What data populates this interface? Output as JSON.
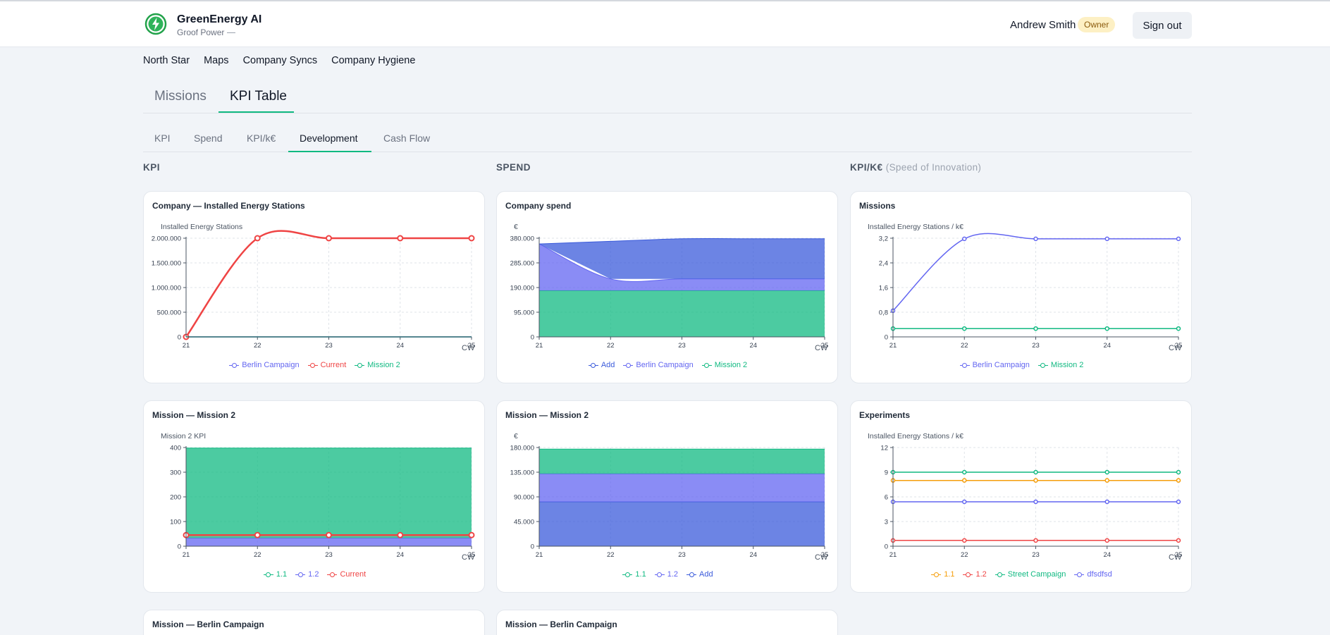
{
  "app": {
    "title": "GreenEnergy AI",
    "subtitle": "Groof Power",
    "user_name": "Andrew Smith",
    "role": "Owner",
    "signout_label": "Sign out"
  },
  "nav": [
    "North Star",
    "Maps",
    "Company Syncs",
    "Company Hygiene"
  ],
  "main_tabs": [
    {
      "label": "Missions",
      "active": false
    },
    {
      "label": "KPI Table",
      "active": true
    }
  ],
  "sub_tabs": [
    {
      "label": "KPI",
      "active": false
    },
    {
      "label": "Spend",
      "active": false
    },
    {
      "label": "KPI/k€",
      "active": false
    },
    {
      "label": "Development",
      "active": true
    },
    {
      "label": "Cash Flow",
      "active": false
    }
  ],
  "sections": {
    "kpi": "KPI",
    "spend": "SPEND",
    "kpik": "KPI/K€",
    "kpik_note": "(Speed of Innovation)"
  },
  "colors": {
    "berlin": "#6366f1",
    "current": "#ef4444",
    "mission2": "#10b981",
    "add": "#3b5bdb",
    "orange": "#f59e0b",
    "accent": "#10b981"
  },
  "chart_data": [
    {
      "id": "kpi_company",
      "title": "Company — Installed Energy Stations",
      "type": "line",
      "ylabel": "Installed Energy Stations",
      "xlabel": "CW",
      "x": [
        21,
        22,
        23,
        24,
        25
      ],
      "ylim": [
        0,
        2000000
      ],
      "yticks": [
        "0",
        "500.000",
        "1.000.000",
        "1.500.000",
        "2.000.000"
      ],
      "series": [
        {
          "name": "Berlin Campaign",
          "color": "#6366f1",
          "values": [
            0,
            0,
            0,
            0,
            0
          ],
          "markers": false
        },
        {
          "name": "Current",
          "color": "#ef4444",
          "values": [
            0,
            2000000,
            2000000,
            2000000,
            2000000
          ],
          "markers": true,
          "big": true
        },
        {
          "name": "Mission 2",
          "color": "#10b981",
          "values": [
            0,
            0,
            0,
            0,
            0
          ],
          "markers": false
        }
      ]
    },
    {
      "id": "spend_company",
      "title": "Company spend",
      "type": "area",
      "ylabel": "€",
      "xlabel": "CW",
      "x": [
        21,
        22,
        23,
        24,
        25
      ],
      "ylim": [
        0,
        380000
      ],
      "yticks": [
        "0",
        "95.000",
        "190.000",
        "285.000",
        "380.000"
      ],
      "series": [
        {
          "name": "Add",
          "color": "#3b5bdb",
          "values": [
            0,
            145000,
            155000,
            155000,
            155000
          ]
        },
        {
          "name": "Berlin Campaign",
          "color": "#6366f1",
          "values": [
            180000,
            45000,
            45000,
            45000,
            45000
          ]
        },
        {
          "name": "Mission 2",
          "color": "#10b981",
          "values": [
            178000,
            178000,
            178000,
            178000,
            178000
          ]
        }
      ]
    },
    {
      "id": "kpik_missions",
      "title": "Missions",
      "type": "line",
      "ylabel": "Installed Energy Stations / k€",
      "xlabel": "CW",
      "x": [
        21,
        22,
        23,
        24,
        25
      ],
      "ylim": [
        0,
        3.2
      ],
      "yticks": [
        "0",
        "0,8",
        "1,6",
        "2,4",
        "3,2"
      ],
      "series": [
        {
          "name": "Berlin Campaign",
          "color": "#6366f1",
          "values": [
            0.85,
            3.18,
            3.18,
            3.18,
            3.18
          ],
          "markers": true
        },
        {
          "name": "Mission 2",
          "color": "#10b981",
          "values": [
            0.27,
            0.27,
            0.27,
            0.27,
            0.27
          ],
          "markers": true
        }
      ]
    },
    {
      "id": "kpi_mission2",
      "title": "Mission — Mission 2",
      "type": "area",
      "ylabel": "Mission 2 KPI",
      "xlabel": "CW",
      "x": [
        21,
        22,
        23,
        24,
        25
      ],
      "ylim": [
        0,
        400
      ],
      "yticks": [
        "0",
        "100",
        "200",
        "300",
        "400"
      ],
      "series": [
        {
          "name": "1.1",
          "color": "#10b981",
          "values": [
            365,
            365,
            365,
            365,
            365
          ]
        },
        {
          "name": "1.2",
          "color": "#6366f1",
          "values": [
            33,
            33,
            33,
            33,
            33
          ]
        },
        {
          "name": "Current",
          "color": "#ef4444",
          "values": [
            45,
            45,
            45,
            45,
            45
          ],
          "line": true
        }
      ]
    },
    {
      "id": "spend_mission2",
      "title": "Mission — Mission 2",
      "type": "area",
      "ylabel": "€",
      "xlabel": "CW",
      "x": [
        21,
        22,
        23,
        24,
        25
      ],
      "ylim": [
        0,
        180000
      ],
      "yticks": [
        "0",
        "45.000",
        "90.000",
        "135.000",
        "180.000"
      ],
      "series": [
        {
          "name": "1.1",
          "color": "#10b981",
          "values": [
            45000,
            45000,
            45000,
            45000,
            45000
          ]
        },
        {
          "name": "1.2",
          "color": "#6366f1",
          "values": [
            51000,
            51000,
            51000,
            51000,
            51000
          ]
        },
        {
          "name": "Add",
          "color": "#3b5bdb",
          "values": [
            81000,
            81000,
            81000,
            81000,
            81000
          ]
        }
      ]
    },
    {
      "id": "kpik_experiments",
      "title": "Experiments",
      "type": "line",
      "ylabel": "Installed Energy Stations / k€",
      "xlabel": "CW",
      "x": [
        21,
        22,
        23,
        24,
        25
      ],
      "ylim": [
        0,
        12
      ],
      "yticks": [
        "0",
        "3",
        "6",
        "9",
        "12"
      ],
      "series": [
        {
          "name": "1.1",
          "color": "#f59e0b",
          "values": [
            8,
            8,
            8,
            8,
            8
          ],
          "markers": true
        },
        {
          "name": "1.2",
          "color": "#ef4444",
          "values": [
            0.7,
            0.7,
            0.7,
            0.7,
            0.7
          ],
          "markers": true
        },
        {
          "name": "Street Campaign",
          "color": "#10b981",
          "values": [
            9,
            9,
            9,
            9,
            9
          ],
          "markers": true
        },
        {
          "name": "dfsdfsd",
          "color": "#6366f1",
          "values": [
            5.4,
            5.4,
            5.4,
            5.4,
            5.4
          ],
          "markers": true
        }
      ]
    }
  ],
  "bottom_cards": [
    {
      "title": "Mission — Berlin Campaign"
    },
    {
      "title": "Mission — Berlin Campaign"
    }
  ]
}
